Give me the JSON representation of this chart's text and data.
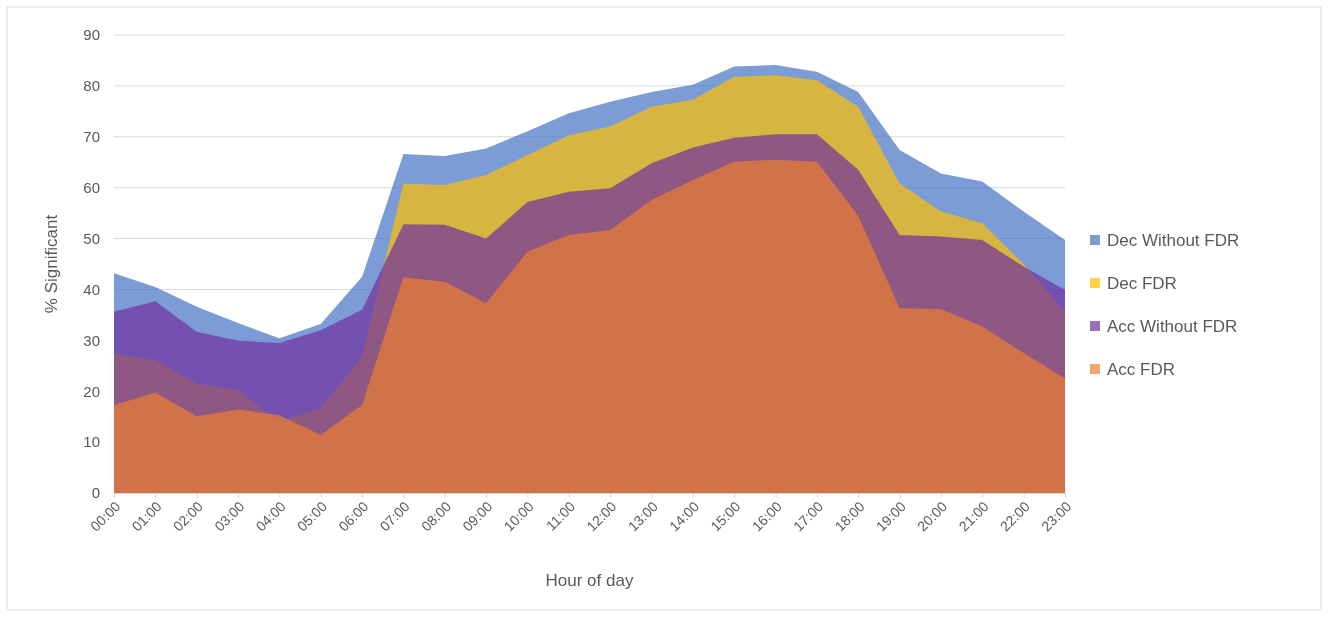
{
  "chart_data": {
    "type": "area",
    "xlabel": "Hour of day",
    "ylabel": "% Significant",
    "categories": [
      "00:00",
      "01:00",
      "02:00",
      "03:00",
      "04:00",
      "05:00",
      "06:00",
      "07:00",
      "08:00",
      "09:00",
      "10:00",
      "11:00",
      "12:00",
      "13:00",
      "14:00",
      "15:00",
      "16:00",
      "17:00",
      "18:00",
      "19:00",
      "20:00",
      "21:00",
      "22:00",
      "23:00"
    ],
    "series": [
      {
        "name": "Dec Without FDR",
        "color": "#4472c4",
        "values": [
          43.2,
          40.5,
          36.6,
          33.4,
          30.4,
          33.2,
          42.5,
          66.6,
          66.2,
          67.7,
          71.1,
          74.6,
          76.9,
          78.8,
          80.2,
          83.8,
          84.1,
          82.8,
          78.8,
          67.4,
          62.8,
          61.2,
          55.3,
          49.7
        ]
      },
      {
        "name": "Dec FDR",
        "color": "#ffc000",
        "values": [
          27.3,
          26.1,
          21.5,
          20.2,
          14.0,
          16.7,
          26.8,
          60.8,
          60.5,
          62.5,
          66.4,
          70.3,
          72.0,
          75.9,
          77.3,
          81.8,
          82.1,
          81.1,
          75.9,
          60.8,
          55.3,
          53.0,
          45.0,
          35.6
        ]
      },
      {
        "name": "Acc Without FDR",
        "color": "#7030a0",
        "values": [
          35.6,
          37.7,
          31.7,
          29.9,
          29.5,
          32.0,
          36.0,
          52.8,
          52.7,
          50.0,
          57.2,
          59.2,
          59.9,
          64.8,
          67.9,
          69.8,
          70.5,
          70.5,
          63.5,
          50.7,
          50.4,
          49.7,
          44.5,
          39.9
        ]
      },
      {
        "name": "Acc FDR",
        "color": "#ed7d31",
        "values": [
          17.3,
          19.7,
          15.1,
          16.4,
          15.3,
          11.4,
          17.3,
          42.4,
          41.5,
          37.3,
          47.4,
          50.7,
          51.7,
          57.6,
          61.5,
          65.1,
          65.5,
          65.1,
          54.5,
          36.3,
          36.1,
          32.7,
          27.5,
          22.5
        ]
      }
    ],
    "ylim": [
      0,
      90
    ],
    "yticks": [
      0,
      10,
      20,
      30,
      40,
      50,
      60,
      70,
      80,
      90
    ],
    "grid": "y",
    "legend": "right"
  }
}
